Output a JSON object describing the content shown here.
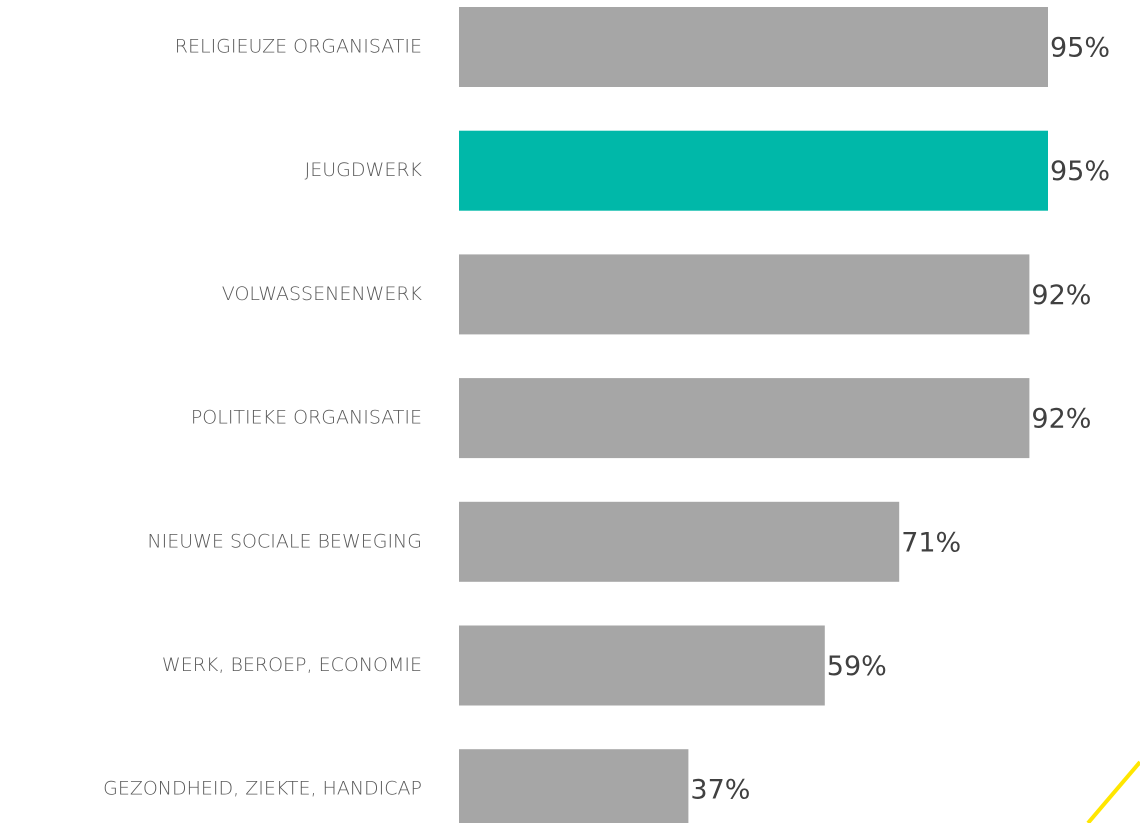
{
  "chart_data": {
    "type": "barh",
    "categories": [
      "RELIGIEUZE ORGANISATIE",
      "JEUGDWERK",
      "VOLWASSENENWERK",
      "POLITIEKE ORGANISATIE",
      "NIEUWE SOCIALE BEWEGING",
      "WERK, BEROEP, ECONOMIE",
      "GEZONDHEID, ZIEKTE, HANDICAP"
    ],
    "values": [
      95,
      95,
      92,
      92,
      71,
      59,
      37
    ],
    "value_labels": [
      "95%",
      "95%",
      "92%",
      "92%",
      "71%",
      "59%",
      "37%"
    ],
    "colors": [
      "#a6a6a6",
      "#00b8a9",
      "#a6a6a6",
      "#a6a6a6",
      "#a6a6a6",
      "#a6a6a6",
      "#a6a6a6"
    ],
    "xlim": [
      0,
      100
    ]
  }
}
